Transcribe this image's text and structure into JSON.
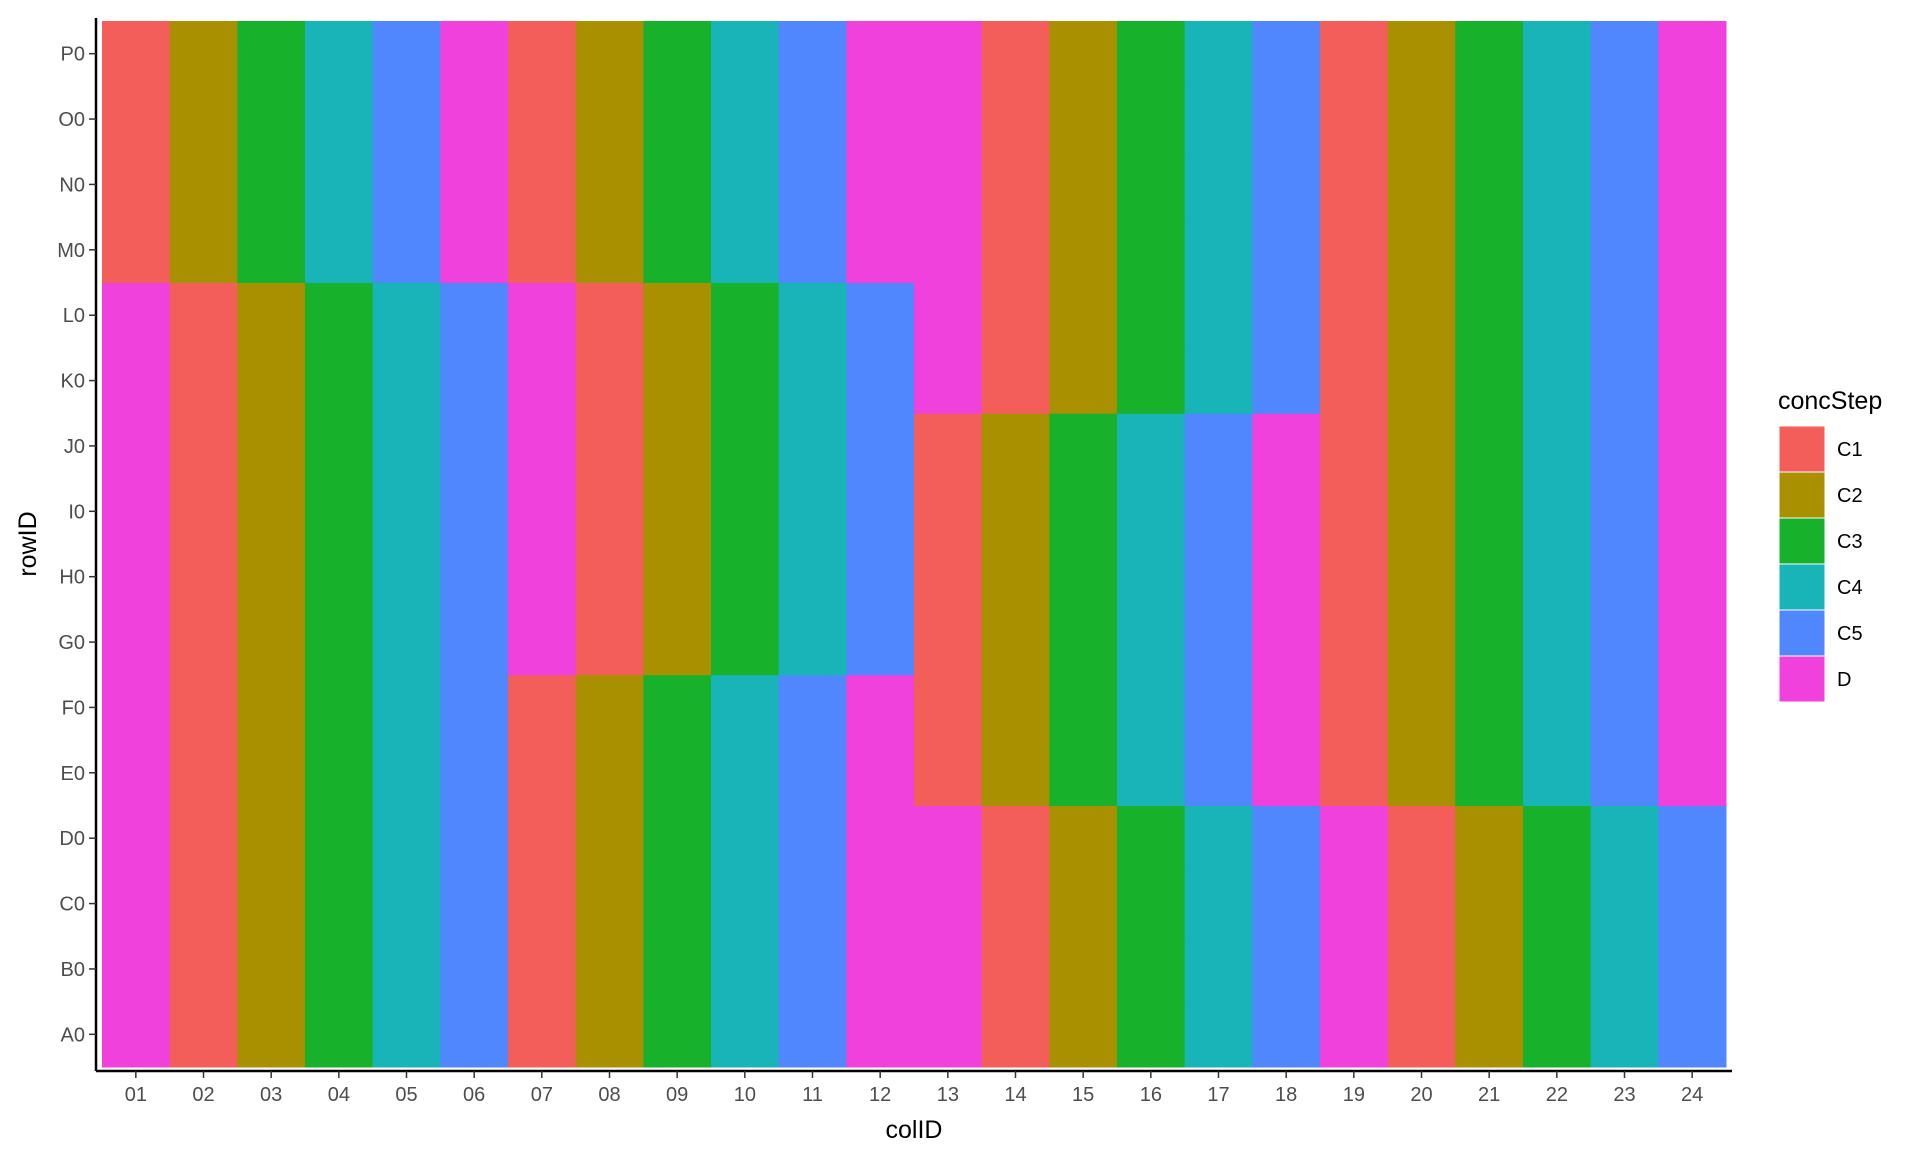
{
  "chart_data": {
    "type": "heatmap",
    "title": "",
    "xlabel": "colID",
    "ylabel": "rowID",
    "x_categories": [
      "01",
      "02",
      "03",
      "04",
      "05",
      "06",
      "07",
      "08",
      "09",
      "10",
      "11",
      "12",
      "13",
      "14",
      "15",
      "16",
      "17",
      "18",
      "19",
      "20",
      "21",
      "22",
      "23",
      "24"
    ],
    "y_categories": [
      "A0",
      "B0",
      "C0",
      "D0",
      "E0",
      "F0",
      "G0",
      "H0",
      "I0",
      "J0",
      "K0",
      "L0",
      "M0",
      "N0",
      "O0",
      "P0"
    ],
    "legend": {
      "title": "concStep",
      "position": "right",
      "levels": [
        "C1",
        "C2",
        "C3",
        "C4",
        "C5",
        "D"
      ],
      "colors": {
        "C1": "#F35E5A",
        "C2": "#A89000",
        "C3": "#17B12B",
        "C4": "#18B4B8",
        "C5": "#5087FF",
        "D": "#F141DD"
      }
    },
    "grid": false,
    "rows": {
      "P0": [
        "C1",
        "C2",
        "C3",
        "C4",
        "C5",
        "D",
        "C1",
        "C2",
        "C3",
        "C4",
        "C5",
        "D",
        "D",
        "C1",
        "C2",
        "C3",
        "C4",
        "C5",
        "C1",
        "C2",
        "C3",
        "C4",
        "C5",
        "D"
      ],
      "O0": [
        "C1",
        "C2",
        "C3",
        "C4",
        "C5",
        "D",
        "C1",
        "C2",
        "C3",
        "C4",
        "C5",
        "D",
        "D",
        "C1",
        "C2",
        "C3",
        "C4",
        "C5",
        "C1",
        "C2",
        "C3",
        "C4",
        "C5",
        "D"
      ],
      "N0": [
        "C1",
        "C2",
        "C3",
        "C4",
        "C5",
        "D",
        "C1",
        "C2",
        "C3",
        "C4",
        "C5",
        "D",
        "D",
        "C1",
        "C2",
        "C3",
        "C4",
        "C5",
        "C1",
        "C2",
        "C3",
        "C4",
        "C5",
        "D"
      ],
      "M0": [
        "C1",
        "C2",
        "C3",
        "C4",
        "C5",
        "D",
        "C1",
        "C2",
        "C3",
        "C4",
        "C5",
        "D",
        "D",
        "C1",
        "C2",
        "C3",
        "C4",
        "C5",
        "C1",
        "C2",
        "C3",
        "C4",
        "C5",
        "D"
      ],
      "L0": [
        "D",
        "C1",
        "C2",
        "C3",
        "C4",
        "C5",
        "D",
        "C1",
        "C2",
        "C3",
        "C4",
        "C5",
        "D",
        "C1",
        "C2",
        "C3",
        "C4",
        "C5",
        "C1",
        "C2",
        "C3",
        "C4",
        "C5",
        "D"
      ],
      "K0": [
        "D",
        "C1",
        "C2",
        "C3",
        "C4",
        "C5",
        "D",
        "C1",
        "C2",
        "C3",
        "C4",
        "C5",
        "D",
        "C1",
        "C2",
        "C3",
        "C4",
        "C5",
        "C1",
        "C2",
        "C3",
        "C4",
        "C5",
        "D"
      ],
      "J0": [
        "D",
        "C1",
        "C2",
        "C3",
        "C4",
        "C5",
        "D",
        "C1",
        "C2",
        "C3",
        "C4",
        "C5",
        "C1",
        "C2",
        "C3",
        "C4",
        "C5",
        "D",
        "C1",
        "C2",
        "C3",
        "C4",
        "C5",
        "D"
      ],
      "I0": [
        "D",
        "C1",
        "C2",
        "C3",
        "C4",
        "C5",
        "D",
        "C1",
        "C2",
        "C3",
        "C4",
        "C5",
        "C1",
        "C2",
        "C3",
        "C4",
        "C5",
        "D",
        "C1",
        "C2",
        "C3",
        "C4",
        "C5",
        "D"
      ],
      "H0": [
        "D",
        "C1",
        "C2",
        "C3",
        "C4",
        "C5",
        "D",
        "C1",
        "C2",
        "C3",
        "C4",
        "C5",
        "C1",
        "C2",
        "C3",
        "C4",
        "C5",
        "D",
        "C1",
        "C2",
        "C3",
        "C4",
        "C5",
        "D"
      ],
      "G0": [
        "D",
        "C1",
        "C2",
        "C3",
        "C4",
        "C5",
        "D",
        "C1",
        "C2",
        "C3",
        "C4",
        "C5",
        "C1",
        "C2",
        "C3",
        "C4",
        "C5",
        "D",
        "C1",
        "C2",
        "C3",
        "C4",
        "C5",
        "D"
      ],
      "F0": [
        "D",
        "C1",
        "C2",
        "C3",
        "C4",
        "C5",
        "C1",
        "C2",
        "C3",
        "C4",
        "C5",
        "D",
        "C1",
        "C2",
        "C3",
        "C4",
        "C5",
        "D",
        "C1",
        "C2",
        "C3",
        "C4",
        "C5",
        "D"
      ],
      "E0": [
        "D",
        "C1",
        "C2",
        "C3",
        "C4",
        "C5",
        "C1",
        "C2",
        "C3",
        "C4",
        "C5",
        "D",
        "C1",
        "C2",
        "C3",
        "C4",
        "C5",
        "D",
        "C1",
        "C2",
        "C3",
        "C4",
        "C5",
        "D"
      ],
      "D0": [
        "D",
        "C1",
        "C2",
        "C3",
        "C4",
        "C5",
        "C1",
        "C2",
        "C3",
        "C4",
        "C5",
        "D",
        "D",
        "C1",
        "C2",
        "C3",
        "C4",
        "C5",
        "D",
        "C1",
        "C2",
        "C3",
        "C4",
        "C5"
      ],
      "C0": [
        "D",
        "C1",
        "C2",
        "C3",
        "C4",
        "C5",
        "C1",
        "C2",
        "C3",
        "C4",
        "C5",
        "D",
        "D",
        "C1",
        "C2",
        "C3",
        "C4",
        "C5",
        "D",
        "C1",
        "C2",
        "C3",
        "C4",
        "C5"
      ],
      "B0": [
        "D",
        "C1",
        "C2",
        "C3",
        "C4",
        "C5",
        "C1",
        "C2",
        "C3",
        "C4",
        "C5",
        "D",
        "D",
        "C1",
        "C2",
        "C3",
        "C4",
        "C5",
        "D",
        "C1",
        "C2",
        "C3",
        "C4",
        "C5"
      ],
      "A0": [
        "D",
        "C1",
        "C2",
        "C3",
        "C4",
        "C5",
        "C1",
        "C2",
        "C3",
        "C4",
        "C5",
        "D",
        "D",
        "C1",
        "C2",
        "C3",
        "C4",
        "C5",
        "D",
        "C1",
        "C2",
        "C3",
        "C4",
        "C5"
      ]
    }
  }
}
